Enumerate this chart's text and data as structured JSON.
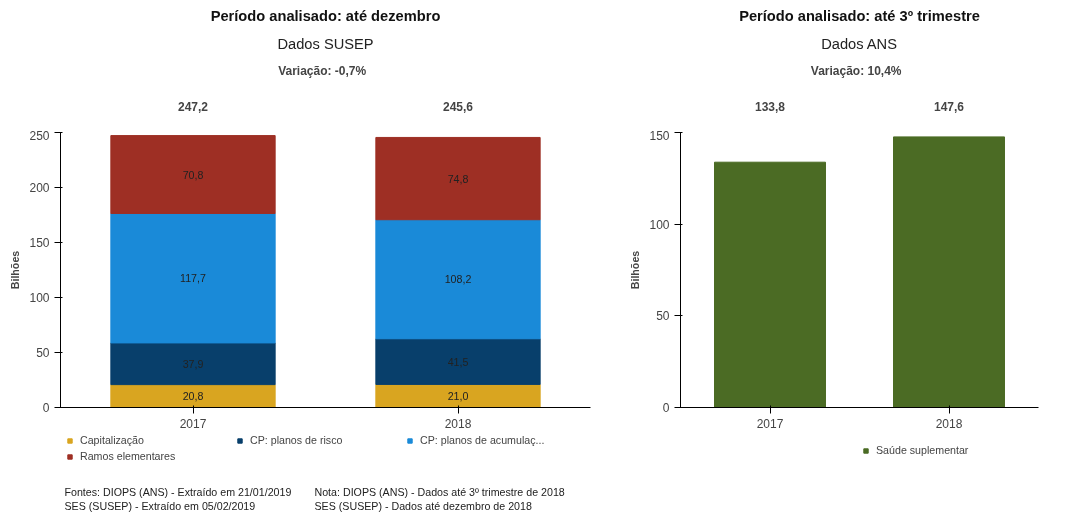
{
  "chart_data": [
    {
      "type": "bar",
      "title": "Período analisado: até dezembro",
      "subtitle": "Dados SUSEP",
      "ylabel": "Bilhões",
      "stacked": true,
      "categories": [
        "2017",
        "2018"
      ],
      "series": [
        {
          "name": "Capitalização",
          "color": "#d9a520",
          "values": [
            20.8,
            21.0
          ],
          "value_labels": [
            "20,8",
            "21,0"
          ]
        },
        {
          "name": "CP: planos de risco",
          "color": "#083f6b",
          "values": [
            37.9,
            41.5
          ],
          "value_labels": [
            "37,9",
            "41,5"
          ]
        },
        {
          "name": "CP: planos de acumulaç...",
          "color": "#1a8ad8",
          "values": [
            117.7,
            108.2
          ],
          "value_labels": [
            "117,7",
            "108,2"
          ]
        },
        {
          "name": "Ramos elementares",
          "color": "#9e2f24",
          "values": [
            70.8,
            74.8
          ],
          "value_labels": [
            "70,8",
            "74,8"
          ]
        }
      ],
      "totals": [
        "247,2",
        "245,6"
      ],
      "ylim": [
        0,
        250
      ],
      "yticks": [
        0,
        50,
        100,
        150,
        200,
        250
      ],
      "grid": false,
      "legend": "bottom",
      "annotations": [
        "Variação:   -0,7%",
        "Fontes: DIOPS (ANS) -  Extraído em 21/01/2019",
        "SES (SUSEP) -  Extraído em 05/02/2019",
        "Nota: DIOPS (ANS) - Dados até 3º trimestre de 2018",
        "SES (SUSEP) - Dados até dezembro de 2018"
      ]
    },
    {
      "type": "bar",
      "title": "Período analisado: até 3º trimestre",
      "subtitle": "Dados ANS",
      "ylabel": "Bilhões",
      "categories": [
        "2017",
        "2018"
      ],
      "series": [
        {
          "name": "Saúde suplementar",
          "color": "#4b6b24",
          "values": [
            133.8,
            147.6
          ],
          "value_labels": [
            "133,8",
            "147,6"
          ]
        }
      ],
      "ylim": [
        0,
        150
      ],
      "yticks": [
        0,
        50,
        100,
        150
      ],
      "grid": false,
      "legend": "bottom",
      "annotations": [
        "Variação:   10,4%"
      ]
    }
  ]
}
